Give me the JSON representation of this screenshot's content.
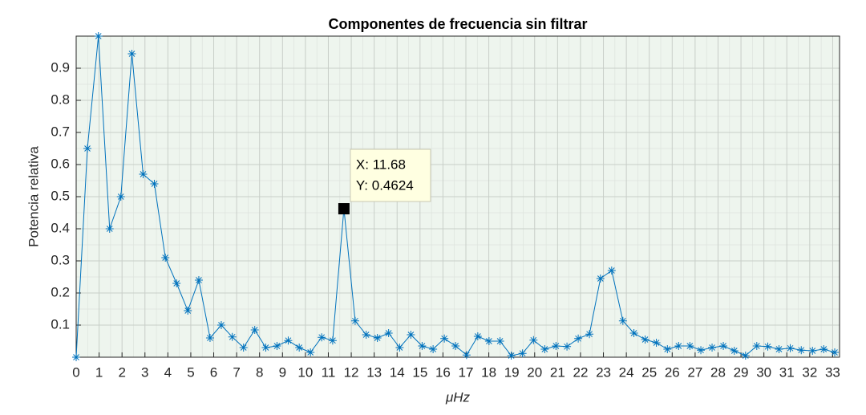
{
  "chart_data": {
    "type": "line",
    "title": "Componentes de frecuencia sin filtrar",
    "x_label": "μHz",
    "y_label": "Potencia relativa",
    "color": "#0072bd",
    "grid": true,
    "x": [
      0,
      0.49,
      0.97,
      1.46,
      1.95,
      2.43,
      2.92,
      3.41,
      3.89,
      4.38,
      4.87,
      5.35,
      5.84,
      6.33,
      6.81,
      7.3,
      7.79,
      8.27,
      8.76,
      9.25,
      9.73,
      10.22,
      10.71,
      11.19,
      11.68,
      12.17,
      12.65,
      13.14,
      13.63,
      14.11,
      14.6,
      15.09,
      15.57,
      16.06,
      16.55,
      17.03,
      17.52,
      18.01,
      18.49,
      18.98,
      19.47,
      19.95,
      20.44,
      20.93,
      21.41,
      21.9,
      22.39,
      22.87,
      23.36,
      23.85,
      24.33,
      24.82,
      25.31,
      25.79,
      26.28,
      26.77,
      27.25,
      27.74,
      28.23,
      28.71,
      29.2,
      29.69,
      30.17,
      30.66,
      31.15,
      31.63,
      32.12,
      32.61,
      33.09
    ],
    "values": [
      0,
      0.65,
      1.0,
      0.4,
      0.5,
      0.945,
      0.57,
      0.54,
      0.31,
      0.23,
      0.145,
      0.24,
      0.06,
      0.1,
      0.063,
      0.03,
      0.085,
      0.03,
      0.035,
      0.052,
      0.03,
      0.015,
      0.062,
      0.052,
      0.4624,
      0.113,
      0.07,
      0.06,
      0.075,
      0.03,
      0.07,
      0.035,
      0.025,
      0.058,
      0.035,
      0.007,
      0.065,
      0.05,
      0.05,
      0.005,
      0.012,
      0.053,
      0.025,
      0.035,
      0.033,
      0.058,
      0.072,
      0.245,
      0.27,
      0.113,
      0.075,
      0.055,
      0.045,
      0.025,
      0.035,
      0.035,
      0.022,
      0.03,
      0.035,
      0.02,
      0.005,
      0.035,
      0.033,
      0.025,
      0.028,
      0.022,
      0.02,
      0.025,
      0.015
    ],
    "xlim": [
      0,
      33.3
    ],
    "ylim": [
      0,
      1
    ],
    "xticks": [
      0,
      1,
      2,
      3,
      4,
      5,
      6,
      7,
      8,
      9,
      10,
      11,
      12,
      13,
      14,
      15,
      16,
      17,
      18,
      19,
      20,
      21,
      22,
      23,
      24,
      25,
      26,
      27,
      28,
      29,
      30,
      31,
      32,
      33
    ],
    "yticks": [
      0.1,
      0.2,
      0.3,
      0.4,
      0.5,
      0.6,
      0.7,
      0.8,
      0.9
    ],
    "datatip": {
      "index": 24,
      "x_text": "X: 11.68",
      "y_text": "Y: 0.4624"
    }
  }
}
